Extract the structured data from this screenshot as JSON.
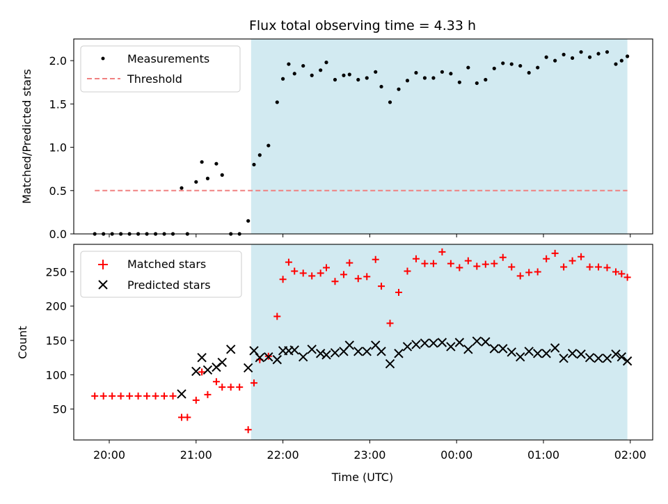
{
  "chart_data": [
    {
      "type": "scatter",
      "title": "Flux total observing time = 4.33 h",
      "ylabel": "Matched/Predicted stars",
      "xlabel": "",
      "ylim": [
        0,
        2.25
      ],
      "yticks": [
        "0.0",
        "0.5",
        "1.0",
        "1.5",
        "2.0"
      ],
      "highlight": {
        "start": "21:38",
        "end": "01:58",
        "color": "#add8e6"
      },
      "legend_position": "top-left",
      "series": [
        {
          "name": "Measurements",
          "marker": "dot",
          "color": "#000000",
          "x": [
            "19:50",
            "19:56",
            "20:02",
            "20:08",
            "20:14",
            "20:20",
            "20:26",
            "20:32",
            "20:38",
            "20:44",
            "20:50",
            "20:54",
            "21:00",
            "21:04",
            "21:08",
            "21:14",
            "21:18",
            "21:24",
            "21:30",
            "21:36",
            "21:40",
            "21:44",
            "21:50",
            "21:56",
            "22:00",
            "22:04",
            "22:08",
            "22:14",
            "22:20",
            "22:26",
            "22:30",
            "22:36",
            "22:42",
            "22:46",
            "22:52",
            "22:58",
            "23:04",
            "23:08",
            "23:14",
            "23:20",
            "23:26",
            "23:32",
            "23:38",
            "23:44",
            "23:50",
            "23:56",
            "00:02",
            "00:08",
            "00:14",
            "00:20",
            "00:26",
            "00:32",
            "00:38",
            "00:44",
            "00:50",
            "00:56",
            "01:02",
            "01:08",
            "01:14",
            "01:20",
            "01:26",
            "01:32",
            "01:38",
            "01:44",
            "01:50",
            "01:54",
            "01:58"
          ],
          "y": [
            0,
            0,
            0,
            0,
            0,
            0,
            0,
            0,
            0,
            0,
            0.53,
            0,
            0.6,
            0.83,
            0.64,
            0.81,
            0.68,
            0,
            0,
            0.15,
            0.8,
            0.91,
            1.02,
            1.52,
            1.79,
            1.96,
            1.85,
            1.94,
            1.83,
            1.89,
            1.98,
            1.78,
            1.83,
            1.84,
            1.78,
            1.8,
            1.87,
            1.7,
            1.52,
            1.67,
            1.77,
            1.86,
            1.8,
            1.8,
            1.87,
            1.85,
            1.75,
            1.92,
            1.74,
            1.78,
            1.91,
            1.97,
            1.96,
            1.94,
            1.86,
            1.92,
            2.04,
            2.0,
            2.07,
            2.03,
            2.1,
            2.04,
            2.08,
            2.1,
            1.96,
            2.0,
            2.05
          ]
        },
        {
          "name": "Threshold",
          "marker": "dashed-line",
          "color": "#f08080",
          "x": [
            "19:50",
            "21:38",
            "01:58"
          ],
          "y": [
            0.5,
            0.5,
            0.5
          ]
        }
      ]
    },
    {
      "type": "scatter",
      "title": "",
      "ylabel": "Count",
      "xlabel": "Time (UTC)",
      "ylim": [
        5,
        290
      ],
      "yticks": [
        "50",
        "100",
        "150",
        "200",
        "250"
      ],
      "xticks": [
        "20:00",
        "21:00",
        "22:00",
        "23:00",
        "00:00",
        "01:00",
        "02:00"
      ],
      "highlight": {
        "start": "21:38",
        "end": "01:58",
        "color": "#add8e6"
      },
      "legend_position": "top-left",
      "series": [
        {
          "name": "Matched stars",
          "marker": "plus",
          "color": "#ff0000",
          "x": [
            "19:50",
            "19:56",
            "20:02",
            "20:08",
            "20:14",
            "20:20",
            "20:26",
            "20:32",
            "20:38",
            "20:44",
            "20:50",
            "20:54",
            "21:00",
            "21:04",
            "21:08",
            "21:14",
            "21:18",
            "21:24",
            "21:30",
            "21:36",
            "21:40",
            "21:44",
            "21:50",
            "21:56",
            "22:00",
            "22:04",
            "22:08",
            "22:14",
            "22:20",
            "22:26",
            "22:30",
            "22:36",
            "22:42",
            "22:46",
            "22:52",
            "22:58",
            "23:04",
            "23:08",
            "23:14",
            "23:20",
            "23:26",
            "23:32",
            "23:38",
            "23:44",
            "23:50",
            "23:56",
            "00:02",
            "00:08",
            "00:14",
            "00:20",
            "00:26",
            "00:32",
            "00:38",
            "00:44",
            "00:50",
            "00:56",
            "01:02",
            "01:08",
            "01:14",
            "01:20",
            "01:26",
            "01:32",
            "01:38",
            "01:44",
            "01:50",
            "01:54",
            "01:58"
          ],
          "y": [
            69,
            69,
            69,
            69,
            69,
            69,
            69,
            69,
            69,
            69,
            38,
            38,
            63,
            104,
            71,
            90,
            82,
            82,
            82,
            20,
            88,
            122,
            127,
            185,
            239,
            264,
            251,
            248,
            244,
            248,
            256,
            236,
            246,
            263,
            240,
            243,
            268,
            229,
            175,
            220,
            251,
            269,
            262,
            262,
            279,
            262,
            256,
            266,
            258,
            261,
            262,
            271,
            257,
            244,
            249,
            250,
            269,
            277,
            257,
            266,
            272,
            257,
            257,
            256,
            250,
            247,
            242
          ]
        },
        {
          "name": "Predicted stars",
          "marker": "x",
          "color": "#000000",
          "x": [
            "20:50",
            "21:00",
            "21:04",
            "21:08",
            "21:14",
            "21:18",
            "21:24",
            "21:36",
            "21:40",
            "21:44",
            "21:50",
            "21:56",
            "22:00",
            "22:04",
            "22:08",
            "22:14",
            "22:20",
            "22:26",
            "22:30",
            "22:36",
            "22:42",
            "22:46",
            "22:52",
            "22:58",
            "23:04",
            "23:08",
            "23:14",
            "23:20",
            "23:26",
            "23:32",
            "23:38",
            "23:44",
            "23:50",
            "23:56",
            "00:02",
            "00:08",
            "00:14",
            "00:20",
            "00:26",
            "00:32",
            "00:38",
            "00:44",
            "00:50",
            "00:56",
            "01:02",
            "01:08",
            "01:14",
            "01:20",
            "01:26",
            "01:32",
            "01:38",
            "01:44",
            "01:50",
            "01:54",
            "01:58"
          ],
          "y": [
            72,
            105,
            125,
            107,
            111,
            118,
            137,
            110,
            135,
            125,
            126,
            122,
            135,
            135,
            136,
            126,
            137,
            131,
            129,
            132,
            134,
            143,
            134,
            134,
            143,
            134,
            116,
            131,
            141,
            144,
            146,
            146,
            147,
            141,
            147,
            137,
            149,
            148,
            138,
            138,
            133,
            126,
            134,
            131,
            131,
            139,
            124,
            131,
            130,
            125,
            124,
            124,
            130,
            126,
            120
          ]
        }
      ]
    }
  ]
}
